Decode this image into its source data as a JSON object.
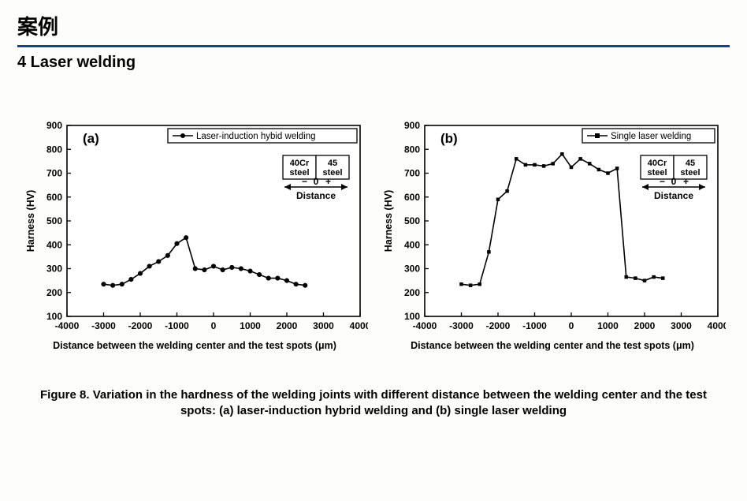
{
  "header": {
    "title_cn": "案例",
    "subtitle": "4 Laser welding"
  },
  "caption": "Figure 8. Variation in the hardness of the welding joints with different distance between the welding center and the test spots: (a) laser-induction hybrid welding and (b) single laser welding",
  "chart_a": {
    "type": "line-scatter",
    "panel_label": "(a)",
    "legend": "Laser-induction hybid welding",
    "distance_box": {
      "left": "40Cr steel",
      "right": "45 steel",
      "minus": "−",
      "zero": "0",
      "plus": "+",
      "caption": "Distance"
    },
    "ylabel": "Harness (HV)",
    "xlabel": "Distance between the welding center and the test spots (μm)",
    "xlim": [
      -4000,
      4000
    ],
    "ylim": [
      100,
      900
    ],
    "xtick_step": 1000,
    "ytick_step": 100,
    "xticks": [
      -4000,
      -3000,
      -2000,
      -1000,
      0,
      1000,
      2000,
      3000,
      4000
    ],
    "yticks": [
      100,
      200,
      300,
      400,
      500,
      600,
      700,
      800,
      900
    ],
    "series_color": "#000000",
    "marker": "circle",
    "marker_size": 4,
    "line_width": 1.6,
    "data": [
      {
        "x": -3000,
        "y": 235
      },
      {
        "x": -2750,
        "y": 230
      },
      {
        "x": -2500,
        "y": 235
      },
      {
        "x": -2250,
        "y": 255
      },
      {
        "x": -2000,
        "y": 280
      },
      {
        "x": -1750,
        "y": 310
      },
      {
        "x": -1500,
        "y": 330
      },
      {
        "x": -1250,
        "y": 355
      },
      {
        "x": -1000,
        "y": 405
      },
      {
        "x": -750,
        "y": 430
      },
      {
        "x": -500,
        "y": 300
      },
      {
        "x": -250,
        "y": 295
      },
      {
        "x": 0,
        "y": 310
      },
      {
        "x": 250,
        "y": 295
      },
      {
        "x": 500,
        "y": 305
      },
      {
        "x": 750,
        "y": 300
      },
      {
        "x": 1000,
        "y": 290
      },
      {
        "x": 1250,
        "y": 275
      },
      {
        "x": 1500,
        "y": 260
      },
      {
        "x": 1750,
        "y": 260
      },
      {
        "x": 2000,
        "y": 250
      },
      {
        "x": 2250,
        "y": 235
      },
      {
        "x": 2500,
        "y": 230
      }
    ],
    "background_color": "#ffffff",
    "axis_color": "#000000",
    "tick_fontsize": 12,
    "label_fontsize": 12.5,
    "panel_label_fontsize": 17
  },
  "chart_b": {
    "type": "line-scatter",
    "panel_label": "(b)",
    "legend": "Single laser welding",
    "distance_box": {
      "left": "40Cr steel",
      "right": "45 steel",
      "minus": "−",
      "zero": "0",
      "plus": "+",
      "caption": "Distance"
    },
    "ylabel": "Harness (HV)",
    "xlabel": "Distance between the welding center and the test spots (μm)",
    "xlim": [
      -4000,
      4000
    ],
    "ylim": [
      100,
      900
    ],
    "xtick_step": 1000,
    "ytick_step": 100,
    "xticks": [
      -4000,
      -3000,
      -2000,
      -1000,
      0,
      1000,
      2000,
      3000,
      4000
    ],
    "yticks": [
      100,
      200,
      300,
      400,
      500,
      600,
      700,
      800,
      900
    ],
    "series_color": "#000000",
    "marker": "square",
    "marker_size": 4.5,
    "line_width": 1.6,
    "data": [
      {
        "x": -3000,
        "y": 235
      },
      {
        "x": -2750,
        "y": 230
      },
      {
        "x": -2500,
        "y": 235
      },
      {
        "x": -2250,
        "y": 370
      },
      {
        "x": -2000,
        "y": 590
      },
      {
        "x": -1750,
        "y": 625
      },
      {
        "x": -1500,
        "y": 760
      },
      {
        "x": -1250,
        "y": 735
      },
      {
        "x": -1000,
        "y": 735
      },
      {
        "x": -750,
        "y": 730
      },
      {
        "x": -500,
        "y": 740
      },
      {
        "x": -250,
        "y": 780
      },
      {
        "x": 0,
        "y": 725
      },
      {
        "x": 250,
        "y": 760
      },
      {
        "x": 500,
        "y": 740
      },
      {
        "x": 750,
        "y": 715
      },
      {
        "x": 1000,
        "y": 700
      },
      {
        "x": 1250,
        "y": 720
      },
      {
        "x": 1500,
        "y": 265
      },
      {
        "x": 1750,
        "y": 260
      },
      {
        "x": 2000,
        "y": 250
      },
      {
        "x": 2250,
        "y": 265
      },
      {
        "x": 2500,
        "y": 260
      }
    ],
    "background_color": "#ffffff",
    "axis_color": "#000000",
    "tick_fontsize": 12,
    "label_fontsize": 12.5,
    "panel_label_fontsize": 17
  }
}
